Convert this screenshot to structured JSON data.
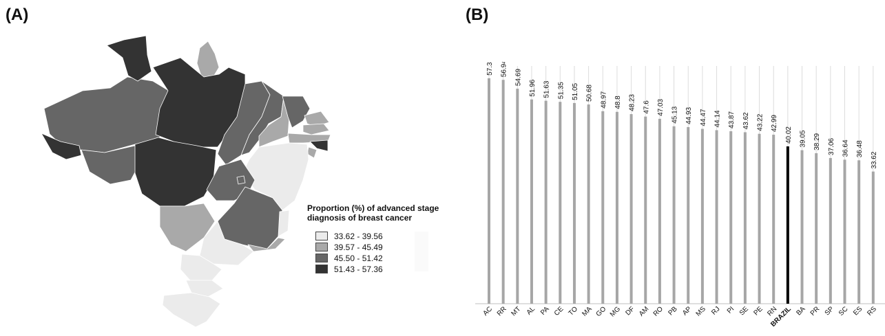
{
  "panels": {
    "a_label": "(A)",
    "b_label": "(B)"
  },
  "legend": {
    "title": "Proportion (%)  of advanced stage diagnosis of breast cancer",
    "items": [
      {
        "label": "33.62 - 39.56",
        "color": "#ebebeb"
      },
      {
        "label": "39.57 - 45.49",
        "color": "#a9a9a9"
      },
      {
        "label": "45.50 - 51.42",
        "color": "#666666"
      },
      {
        "label": "51.43 - 57.36",
        "color": "#333333"
      }
    ]
  },
  "map_regions": [
    {
      "abbr": "AC",
      "value": 57.35
    },
    {
      "abbr": "RR",
      "value": 56.94
    },
    {
      "abbr": "MT",
      "value": 54.69
    },
    {
      "abbr": "AL",
      "value": 51.96
    },
    {
      "abbr": "PA",
      "value": 51.63
    },
    {
      "abbr": "CE",
      "value": 51.35
    },
    {
      "abbr": "TO",
      "value": 51.05
    },
    {
      "abbr": "MA",
      "value": 50.68
    },
    {
      "abbr": "GO",
      "value": 48.97
    },
    {
      "abbr": "MG",
      "value": 48.8
    },
    {
      "abbr": "DF",
      "value": 48.23
    },
    {
      "abbr": "AM",
      "value": 47.6
    },
    {
      "abbr": "RO",
      "value": 47.03
    },
    {
      "abbr": "PB",
      "value": 45.13
    },
    {
      "abbr": "AP",
      "value": 44.93
    },
    {
      "abbr": "MS",
      "value": 44.47
    },
    {
      "abbr": "RJ",
      "value": 44.14
    },
    {
      "abbr": "PI",
      "value": 43.87
    },
    {
      "abbr": "SE",
      "value": 43.62
    },
    {
      "abbr": "PE",
      "value": 43.22
    },
    {
      "abbr": "RN",
      "value": 42.99
    },
    {
      "abbr": "BA",
      "value": 39.05
    },
    {
      "abbr": "PR",
      "value": 38.29
    },
    {
      "abbr": "SP",
      "value": 37.06
    },
    {
      "abbr": "SC",
      "value": 36.64
    },
    {
      "abbr": "ES",
      "value": 36.48
    },
    {
      "abbr": "RS",
      "value": 33.62
    }
  ],
  "chart_data": {
    "type": "bar",
    "categories": [
      "AC",
      "RR",
      "MT",
      "AL",
      "PA",
      "CE",
      "TO",
      "MA",
      "GO",
      "MG",
      "DF",
      "AM",
      "RO",
      "PB",
      "AP",
      "MS",
      "RJ",
      "PI",
      "SE",
      "PE",
      "RN",
      "BRAZIL",
      "BA",
      "PR",
      "SP",
      "SC",
      "ES",
      "RS"
    ],
    "values": [
      57.35,
      56.94,
      54.69,
      51.96,
      51.63,
      51.35,
      51.05,
      50.68,
      48.97,
      48.8,
      48.23,
      47.6,
      47.03,
      45.13,
      44.93,
      44.47,
      44.14,
      43.87,
      43.62,
      43.22,
      42.99,
      40.02,
      39.05,
      38.29,
      37.06,
      36.64,
      36.48,
      33.62
    ],
    "value_labels": [
      "57.35",
      "56.94",
      "54.69",
      "51.96",
      "51.63",
      "51.35",
      "51.05",
      "50.68",
      "48.97",
      "48.8",
      "48.23",
      "47.6",
      "47.03",
      "45.13",
      "44.93",
      "44.47",
      "44.14",
      "43.87",
      "43.62",
      "43.22",
      "42.99",
      "40.02",
      "39.05",
      "38.29",
      "37.06",
      "36.64",
      "36.48",
      "33.62"
    ],
    "highlight_category": "BRAZIL",
    "bar_color": "#a6a6a6",
    "highlight_color": "#000000",
    "gridline_color": "#dcdcdc",
    "ylim": [
      0,
      60
    ],
    "grid": true,
    "title": "",
    "xlabel": "",
    "ylabel": ""
  }
}
